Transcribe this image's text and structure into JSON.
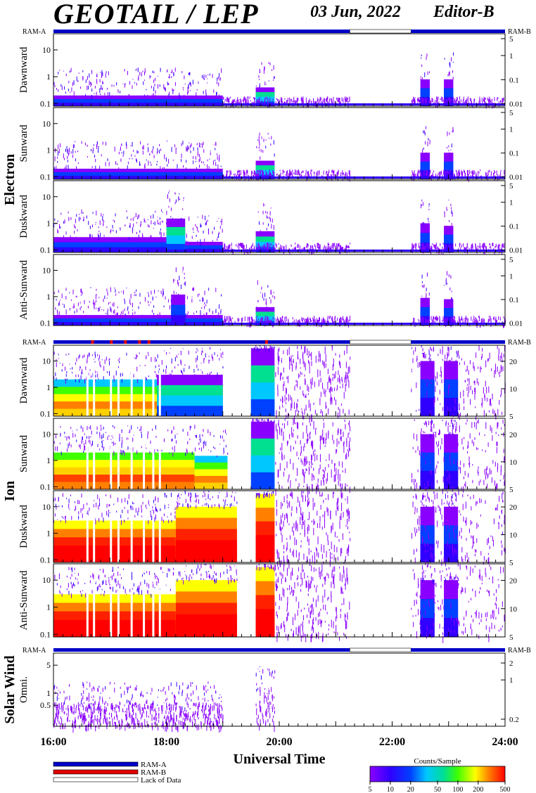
{
  "header": {
    "title": "GEOTAIL / LEP",
    "date": "03 Jun, 2022",
    "editor": "Editor-B"
  },
  "ram_labels": {
    "left": "RAM-A",
    "right": "RAM-B"
  },
  "groups": [
    {
      "name": "Electron",
      "panels": [
        "Dawnward",
        "Sunward",
        "Duskward",
        "Anti-Sunward"
      ]
    },
    {
      "name": "Ion",
      "panels": [
        "Dawnward",
        "Sunward",
        "Duskward",
        "Anti-Sunward"
      ]
    },
    {
      "name": "Solar Wind",
      "panels": [
        "Omni."
      ]
    }
  ],
  "x_axis": {
    "label": "Universal Time",
    "ticks": [
      "16:00",
      "18:00",
      "20:00",
      "22:00",
      "24:00"
    ]
  },
  "legend": {
    "items": [
      {
        "label": "RAM-A",
        "color": "#0000c8"
      },
      {
        "label": "RAM-B",
        "color": "#e00000"
      },
      {
        "label": "Lack of Data",
        "color": "#ffffff"
      }
    ],
    "colorbar_title": "Counts/Sample",
    "colorbar_ticks": [
      "5",
      "10",
      "20",
      "50",
      "100",
      "200",
      "500"
    ]
  },
  "chart_data": {
    "type": "heatmap",
    "time_range": [
      "16:00",
      "24:00"
    ],
    "data_gap": [
      "21:15",
      "22:20"
    ],
    "status_bar": {
      "ram_b_segments_ion": [
        "16:40",
        "17:00",
        "17:15",
        "17:30",
        "17:40",
        "19:45"
      ]
    },
    "panels": [
      {
        "group": "Electron",
        "name": "Dawnward",
        "left_ticks": [
          "10",
          "1",
          "0.1"
        ],
        "right_ticks": [
          "5",
          "1",
          "0.1",
          "0.01"
        ],
        "left_range": [
          0.08,
          40
        ],
        "right_range": [
          0.008,
          8
        ],
        "activity": [
          {
            "start": "16:00",
            "end": "19:00",
            "top": 0.2,
            "intensity": "low"
          },
          {
            "start": "19:35",
            "end": "19:55",
            "top": 0.4,
            "intensity": "medium"
          },
          {
            "start": "22:30",
            "end": "22:40",
            "top": 0.8,
            "intensity": "low"
          },
          {
            "start": "22:55",
            "end": "23:05",
            "top": 0.8,
            "intensity": "low"
          }
        ]
      },
      {
        "group": "Electron",
        "name": "Sunward",
        "left_ticks": [
          "10",
          "1",
          "0.1"
        ],
        "right_ticks": [
          "5",
          "1",
          "0.1",
          "0.01"
        ],
        "left_range": [
          0.08,
          40
        ],
        "right_range": [
          0.008,
          8
        ],
        "activity": [
          {
            "start": "16:00",
            "end": "19:00",
            "top": 0.2,
            "intensity": "low"
          },
          {
            "start": "19:35",
            "end": "19:55",
            "top": 0.4,
            "intensity": "medium"
          },
          {
            "start": "22:30",
            "end": "22:40",
            "top": 0.8,
            "intensity": "low"
          },
          {
            "start": "22:55",
            "end": "23:05",
            "top": 0.8,
            "intensity": "low"
          }
        ]
      },
      {
        "group": "Electron",
        "name": "Duskward",
        "left_ticks": [
          "10",
          "1",
          "0.1"
        ],
        "right_ticks": [
          "5",
          "1",
          "0.1",
          "0.01"
        ],
        "left_range": [
          0.08,
          40
        ],
        "right_range": [
          0.008,
          8
        ],
        "activity": [
          {
            "start": "16:00",
            "end": "18:00",
            "top": 0.3,
            "intensity": "low"
          },
          {
            "start": "18:00",
            "end": "18:20",
            "top": 1.5,
            "intensity": "medium"
          },
          {
            "start": "18:20",
            "end": "19:00",
            "top": 0.2,
            "intensity": "low"
          },
          {
            "start": "19:35",
            "end": "19:55",
            "top": 0.5,
            "intensity": "medium"
          },
          {
            "start": "22:30",
            "end": "22:40",
            "top": 1.0,
            "intensity": "low"
          },
          {
            "start": "22:55",
            "end": "23:05",
            "top": 0.8,
            "intensity": "low"
          }
        ]
      },
      {
        "group": "Electron",
        "name": "Anti-Sunward",
        "left_ticks": [
          "10",
          "1",
          "0.1"
        ],
        "right_ticks": [
          "5",
          "1",
          "0.1",
          "0.01"
        ],
        "left_range": [
          0.08,
          40
        ],
        "right_range": [
          0.008,
          8
        ],
        "activity": [
          {
            "start": "16:00",
            "end": "19:00",
            "top": 0.2,
            "intensity": "low"
          },
          {
            "start": "18:05",
            "end": "18:20",
            "top": 1.2,
            "intensity": "low"
          },
          {
            "start": "19:35",
            "end": "19:55",
            "top": 0.4,
            "intensity": "medium"
          },
          {
            "start": "22:30",
            "end": "22:40",
            "top": 0.9,
            "intensity": "low"
          },
          {
            "start": "22:55",
            "end": "23:05",
            "top": 0.8,
            "intensity": "low"
          }
        ]
      },
      {
        "group": "Ion",
        "name": "Dawnward",
        "left_ticks": [
          "10",
          "1",
          "0.1"
        ],
        "right_ticks": [
          "20",
          "10",
          "5"
        ],
        "left_range": [
          0.08,
          40
        ],
        "right_range": [
          5,
          30
        ],
        "activity": [
          {
            "start": "16:00",
            "end": "17:50",
            "top": 2.0,
            "intensity": "high"
          },
          {
            "start": "17:50",
            "end": "19:00",
            "top": 3.0,
            "intensity": "medium"
          },
          {
            "start": "19:30",
            "end": "19:55",
            "top": 30,
            "intensity": "medium"
          },
          {
            "start": "22:30",
            "end": "22:45",
            "top": 10,
            "intensity": "low"
          },
          {
            "start": "22:55",
            "end": "23:10",
            "top": 10,
            "intensity": "low"
          }
        ]
      },
      {
        "group": "Ion",
        "name": "Sunward",
        "left_ticks": [
          "10",
          "1",
          "0.1"
        ],
        "right_ticks": [
          "20",
          "10",
          "5"
        ],
        "left_range": [
          0.08,
          40
        ],
        "right_range": [
          5,
          30
        ],
        "activity": [
          {
            "start": "16:00",
            "end": "18:30",
            "top": 2.0,
            "intensity": "veryhigh"
          },
          {
            "start": "18:30",
            "end": "19:05",
            "top": 1.5,
            "intensity": "high"
          },
          {
            "start": "19:30",
            "end": "19:55",
            "top": 30,
            "intensity": "medium"
          },
          {
            "start": "22:30",
            "end": "22:45",
            "top": 10,
            "intensity": "low"
          },
          {
            "start": "22:55",
            "end": "23:10",
            "top": 10,
            "intensity": "low"
          }
        ]
      },
      {
        "group": "Ion",
        "name": "Duskward",
        "left_ticks": [
          "10",
          "1",
          "0.1"
        ],
        "right_ticks": [
          "20",
          "10",
          "5"
        ],
        "left_range": [
          0.08,
          40
        ],
        "right_range": [
          5,
          30
        ],
        "activity": [
          {
            "start": "16:00",
            "end": "18:10",
            "top": 3.0,
            "intensity": "max"
          },
          {
            "start": "18:10",
            "end": "19:15",
            "top": 10,
            "intensity": "max"
          },
          {
            "start": "19:35",
            "end": "19:55",
            "top": 30,
            "intensity": "max"
          },
          {
            "start": "22:30",
            "end": "22:45",
            "top": 10,
            "intensity": "low"
          },
          {
            "start": "22:55",
            "end": "23:10",
            "top": 10,
            "intensity": "low"
          }
        ]
      },
      {
        "group": "Ion",
        "name": "Anti-Sunward",
        "left_ticks": [
          "10",
          "1",
          "0.1"
        ],
        "right_ticks": [
          "20",
          "10",
          "5"
        ],
        "left_range": [
          0.08,
          40
        ],
        "right_range": [
          5,
          30
        ],
        "activity": [
          {
            "start": "16:00",
            "end": "18:10",
            "top": 3.0,
            "intensity": "max"
          },
          {
            "start": "18:10",
            "end": "19:15",
            "top": 10,
            "intensity": "max"
          },
          {
            "start": "19:35",
            "end": "19:55",
            "top": 30,
            "intensity": "max"
          },
          {
            "start": "22:30",
            "end": "22:45",
            "top": 10,
            "intensity": "low"
          },
          {
            "start": "22:55",
            "end": "23:10",
            "top": 10,
            "intensity": "low"
          }
        ]
      },
      {
        "group": "Solar Wind",
        "name": "Omni.",
        "left_ticks": [
          "5",
          "1",
          "0.5"
        ],
        "right_ticks": [
          "2",
          "1",
          "0.2"
        ],
        "left_range": [
          0.15,
          10
        ],
        "right_range": [
          0.15,
          3
        ],
        "activity": [
          {
            "start": "16:00",
            "end": "19:00",
            "top": 0.4,
            "intensity": "sparse"
          },
          {
            "start": "19:35",
            "end": "19:55",
            "top": 1.0,
            "intensity": "sparse"
          }
        ]
      }
    ]
  }
}
